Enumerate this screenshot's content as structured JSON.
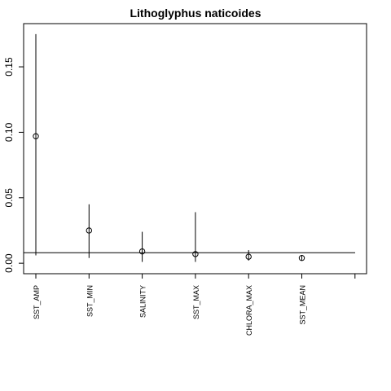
{
  "chart_data": {
    "type": "scatter",
    "title": "Lithoglyphus naticoides",
    "xlabel": "",
    "ylabel": "",
    "categories": [
      "SST_AMP",
      "SST_MIN",
      "SALINITY",
      "SST_MAX",
      "CHLORA_MAX",
      "SST_MEAN"
    ],
    "points": [
      {
        "category": "SST_AMP",
        "value": 0.097,
        "lower": 0.006,
        "upper": 0.175
      },
      {
        "category": "SST_MIN",
        "value": 0.025,
        "lower": 0.004,
        "upper": 0.045
      },
      {
        "category": "SALINITY",
        "value": 0.009,
        "lower": 0.001,
        "upper": 0.024
      },
      {
        "category": "SST_MAX",
        "value": 0.007,
        "lower": 0.001,
        "upper": 0.039
      },
      {
        "category": "CHLORA_MAX",
        "value": 0.005,
        "lower": 0.002,
        "upper": 0.01
      },
      {
        "category": "SST_MEAN",
        "value": 0.004,
        "lower": 0.002,
        "upper": 0.006
      }
    ],
    "reference_line": 0.008,
    "y_ticks": [
      "0.00",
      "0.05",
      "0.10",
      "0.15"
    ],
    "ylim": [
      -0.008,
      0.183
    ],
    "grid": false
  }
}
